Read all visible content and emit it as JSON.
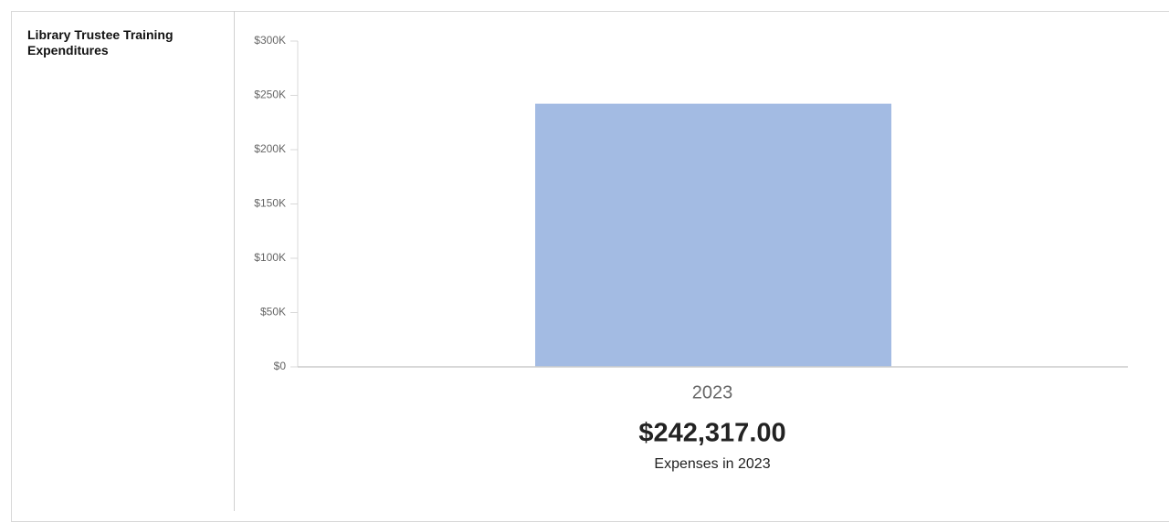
{
  "chart_data": {
    "type": "bar",
    "title": "Library Trustee Training Expenditures",
    "categories": [
      "2023"
    ],
    "values": [
      242317
    ],
    "value_labels": [
      "$242,317.00"
    ],
    "color": "#a3bbe3",
    "caption": "Expenses in 2023",
    "ylim": [
      0,
      300000
    ],
    "yticks": [
      {
        "value": 0,
        "label": "$0"
      },
      {
        "value": 50000,
        "label": "$50K"
      },
      {
        "value": 100000,
        "label": "$100K"
      },
      {
        "value": 150000,
        "label": "$150K"
      },
      {
        "value": 200000,
        "label": "$200K"
      },
      {
        "value": 250000,
        "label": "$250K"
      },
      {
        "value": 300000,
        "label": "$300K"
      }
    ]
  }
}
